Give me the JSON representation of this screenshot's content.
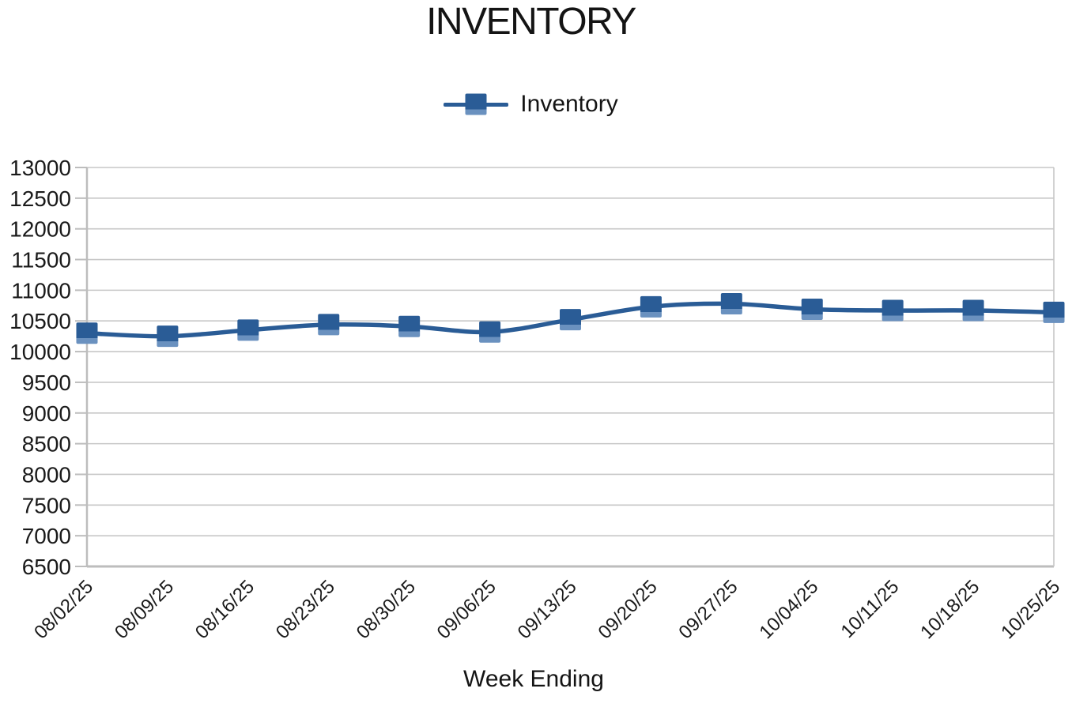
{
  "chart_data": {
    "type": "line",
    "title": "INVENTORY",
    "xlabel": "Week Ending",
    "ylabel": "",
    "categories": [
      "08/02/25",
      "08/09/25",
      "08/16/25",
      "08/23/25",
      "08/30/25",
      "09/06/25",
      "09/13/25",
      "09/20/25",
      "09/27/25",
      "10/04/25",
      "10/11/25",
      "10/18/25",
      "10/25/25"
    ],
    "series": [
      {
        "name": "Inventory",
        "values": [
          10300,
          10250,
          10350,
          10440,
          10410,
          10320,
          10520,
          10730,
          10780,
          10690,
          10670,
          10670,
          10640
        ]
      }
    ],
    "ylim": [
      6500,
      13000
    ],
    "ytick_step": 500,
    "yticks": [
      6500,
      7000,
      7500,
      8000,
      8500,
      9000,
      9500,
      10000,
      10500,
      11000,
      11500,
      12000,
      12500,
      13000
    ],
    "grid": true,
    "smooth_line": true,
    "marker": "square",
    "legend_position": "top-center",
    "legend_entries": [
      "Inventory"
    ],
    "colors": {
      "series": "#2a5c96",
      "marker_bevel": "#6a91bf",
      "gridline": "#c7c7c7",
      "axis": "#bdbdbd",
      "text": "#1a1a1a"
    }
  }
}
